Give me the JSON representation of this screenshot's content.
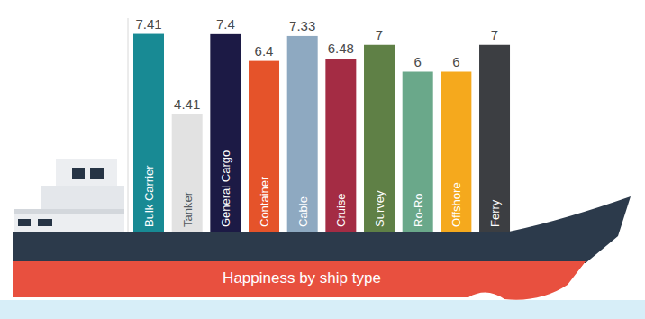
{
  "chart_data": {
    "type": "bar",
    "title": "Happiness by ship type",
    "categories": [
      "Bulk Carrier",
      "Tanker",
      "General Cargo",
      "Container",
      "Cable",
      "Cruise",
      "Survey",
      "Ro-Ro",
      "Offshore",
      "Ferry"
    ],
    "values": [
      7.41,
      4.41,
      7.4,
      6.4,
      7.33,
      6.48,
      7,
      6,
      6,
      7
    ],
    "colors": [
      "#188a94",
      "#e2e2e2",
      "#1c1a45",
      "#e5532a",
      "#8ea9c1",
      "#a42c44",
      "#5f8046",
      "#6aa88a",
      "#f5a91d",
      "#3c3e42"
    ],
    "ylim": [
      0,
      8
    ],
    "grid": false,
    "data_labels": true,
    "tick_labels": false
  }
}
